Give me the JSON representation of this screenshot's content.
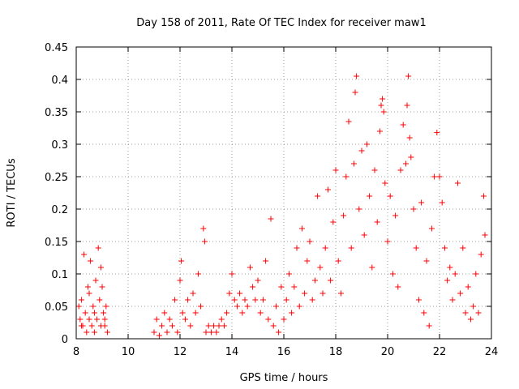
{
  "chart_data": {
    "type": "scatter",
    "title": "Day 158 of 2011, Rate Of TEC Index for receiver maw1",
    "xlabel": "GPS time / hours",
    "ylabel": "ROTI / TECUs",
    "xlim": [
      8,
      24
    ],
    "ylim": [
      0,
      0.45
    ],
    "xticks": [
      8,
      10,
      12,
      14,
      16,
      18,
      20,
      22,
      24
    ],
    "xtick_labels": [
      "8",
      "10",
      "12",
      "14",
      "16",
      "18",
      "20",
      "22",
      "24"
    ],
    "yticks": [
      0,
      0.05,
      0.1,
      0.15,
      0.2,
      0.25,
      0.3,
      0.35,
      0.4,
      0.45
    ],
    "ytick_labels": [
      "0",
      "0.05",
      "0.1",
      "0.15",
      "0.2",
      "0.25",
      "0.3",
      "0.35",
      "0.4",
      "0.45"
    ],
    "grid": true,
    "marker": "+",
    "marker_color": "#ff0000",
    "series": [
      {
        "name": "maw1",
        "points": [
          [
            8.1,
            0.05
          ],
          [
            8.15,
            0.03
          ],
          [
            8.2,
            0.06
          ],
          [
            8.25,
            0.02
          ],
          [
            8.3,
            0.13
          ],
          [
            8.35,
            0.04
          ],
          [
            8.4,
            0.01
          ],
          [
            8.45,
            0.08
          ],
          [
            8.5,
            0.03
          ],
          [
            8.55,
            0.12
          ],
          [
            8.6,
            0.02
          ],
          [
            8.65,
            0.05
          ],
          [
            8.7,
            0.01
          ],
          [
            8.75,
            0.09
          ],
          [
            8.8,
            0.03
          ],
          [
            8.85,
            0.14
          ],
          [
            8.9,
            0.06
          ],
          [
            8.95,
            0.02
          ],
          [
            9.0,
            0.08
          ],
          [
            9.05,
            0.04
          ],
          [
            9.1,
            0.02
          ],
          [
            9.15,
            0.05
          ],
          [
            9.2,
            0.01
          ],
          [
            8.2,
            0.02
          ],
          [
            8.5,
            0.07
          ],
          [
            8.7,
            0.04
          ],
          [
            8.95,
            0.11
          ],
          [
            9.1,
            0.03
          ],
          [
            11.0,
            0.01
          ],
          [
            11.1,
            0.03
          ],
          [
            11.2,
            0.005
          ],
          [
            11.3,
            0.02
          ],
          [
            11.4,
            0.04
          ],
          [
            11.5,
            0.01
          ],
          [
            11.6,
            0.03
          ],
          [
            11.7,
            0.02
          ],
          [
            11.8,
            0.06
          ],
          [
            11.9,
            0.01
          ],
          [
            12.0,
            0.09
          ],
          [
            12.05,
            0.12
          ],
          [
            12.1,
            0.04
          ],
          [
            12.2,
            0.03
          ],
          [
            12.3,
            0.06
          ],
          [
            12.4,
            0.02
          ],
          [
            12.5,
            0.07
          ],
          [
            12.6,
            0.04
          ],
          [
            12.7,
            0.1
          ],
          [
            12.8,
            0.05
          ],
          [
            12.9,
            0.17
          ],
          [
            12.95,
            0.15
          ],
          [
            13.0,
            0.01
          ],
          [
            13.1,
            0.02
          ],
          [
            13.2,
            0.01
          ],
          [
            13.3,
            0.02
          ],
          [
            13.4,
            0.01
          ],
          [
            13.5,
            0.02
          ],
          [
            13.6,
            0.03
          ],
          [
            13.7,
            0.02
          ],
          [
            13.8,
            0.04
          ],
          [
            13.9,
            0.07
          ],
          [
            14.0,
            0.1
          ],
          [
            14.1,
            0.06
          ],
          [
            14.2,
            0.05
          ],
          [
            14.3,
            0.07
          ],
          [
            14.4,
            0.04
          ],
          [
            14.5,
            0.06
          ],
          [
            14.6,
            0.05
          ],
          [
            14.7,
            0.11
          ],
          [
            14.8,
            0.08
          ],
          [
            14.9,
            0.06
          ],
          [
            15.0,
            0.09
          ],
          [
            15.1,
            0.04
          ],
          [
            15.2,
            0.06
          ],
          [
            15.3,
            0.12
          ],
          [
            15.4,
            0.03
          ],
          [
            15.5,
            0.185
          ],
          [
            15.6,
            0.02
          ],
          [
            15.7,
            0.05
          ],
          [
            15.8,
            0.01
          ],
          [
            15.9,
            0.08
          ],
          [
            16.0,
            0.03
          ],
          [
            16.1,
            0.06
          ],
          [
            16.2,
            0.1
          ],
          [
            16.3,
            0.04
          ],
          [
            16.4,
            0.08
          ],
          [
            16.5,
            0.14
          ],
          [
            16.6,
            0.05
          ],
          [
            16.7,
            0.17
          ],
          [
            16.8,
            0.07
          ],
          [
            16.9,
            0.12
          ],
          [
            17.0,
            0.15
          ],
          [
            17.1,
            0.06
          ],
          [
            17.2,
            0.09
          ],
          [
            17.3,
            0.22
          ],
          [
            17.4,
            0.11
          ],
          [
            17.5,
            0.07
          ],
          [
            17.6,
            0.14
          ],
          [
            17.7,
            0.23
          ],
          [
            17.8,
            0.09
          ],
          [
            17.9,
            0.18
          ],
          [
            18.0,
            0.26
          ],
          [
            18.1,
            0.12
          ],
          [
            18.2,
            0.07
          ],
          [
            18.3,
            0.19
          ],
          [
            18.4,
            0.25
          ],
          [
            18.5,
            0.335
          ],
          [
            18.6,
            0.14
          ],
          [
            18.7,
            0.27
          ],
          [
            18.75,
            0.38
          ],
          [
            18.8,
            0.405
          ],
          [
            18.9,
            0.2
          ],
          [
            19.0,
            0.29
          ],
          [
            19.1,
            0.16
          ],
          [
            19.2,
            0.3
          ],
          [
            19.3,
            0.22
          ],
          [
            19.4,
            0.11
          ],
          [
            19.5,
            0.26
          ],
          [
            19.6,
            0.18
          ],
          [
            19.7,
            0.32
          ],
          [
            19.75,
            0.36
          ],
          [
            19.8,
            0.37
          ],
          [
            19.85,
            0.35
          ],
          [
            19.9,
            0.24
          ],
          [
            20.0,
            0.15
          ],
          [
            20.1,
            0.22
          ],
          [
            20.2,
            0.1
          ],
          [
            20.3,
            0.19
          ],
          [
            20.4,
            0.08
          ],
          [
            20.5,
            0.26
          ],
          [
            20.6,
            0.33
          ],
          [
            20.7,
            0.27
          ],
          [
            20.75,
            0.36
          ],
          [
            20.8,
            0.405
          ],
          [
            20.85,
            0.31
          ],
          [
            20.9,
            0.28
          ],
          [
            21.0,
            0.2
          ],
          [
            21.1,
            0.14
          ],
          [
            21.2,
            0.06
          ],
          [
            21.3,
            0.21
          ],
          [
            21.4,
            0.04
          ],
          [
            21.5,
            0.12
          ],
          [
            21.6,
            0.02
          ],
          [
            21.7,
            0.17
          ],
          [
            21.8,
            0.25
          ],
          [
            21.9,
            0.318
          ],
          [
            22.0,
            0.25
          ],
          [
            22.1,
            0.21
          ],
          [
            22.2,
            0.14
          ],
          [
            22.3,
            0.09
          ],
          [
            22.4,
            0.11
          ],
          [
            22.5,
            0.06
          ],
          [
            22.6,
            0.1
          ],
          [
            22.7,
            0.24
          ],
          [
            22.8,
            0.07
          ],
          [
            22.9,
            0.14
          ],
          [
            23.0,
            0.04
          ],
          [
            23.1,
            0.08
          ],
          [
            23.2,
            0.03
          ],
          [
            23.3,
            0.05
          ],
          [
            23.4,
            0.1
          ],
          [
            23.5,
            0.04
          ],
          [
            23.6,
            0.13
          ],
          [
            23.7,
            0.22
          ],
          [
            23.75,
            0.16
          ]
        ]
      }
    ]
  }
}
